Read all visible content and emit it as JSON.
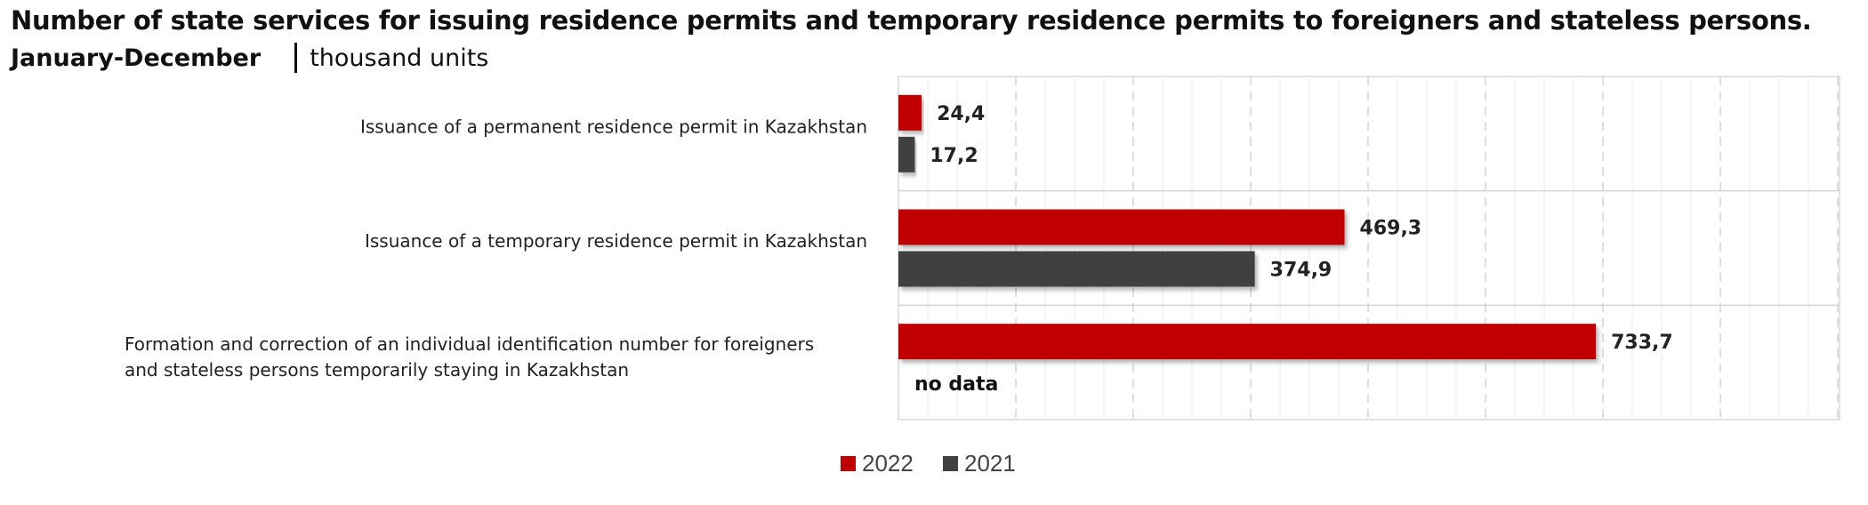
{
  "chart_data": {
    "type": "bar",
    "orientation": "horizontal",
    "title": "Number of state services for issuing residence permits and temporary residence permits to foreigners and stateless persons.",
    "period": "January-December",
    "units": "thousand units",
    "categories": [
      "Issuance of a permanent residence permit in Kazakhstan",
      "Issuance of a temporary residence permit in Kazakhstan",
      "Formation and correction of an individual identification number for foreigners and stateless persons temporarily staying in Kazakhstan"
    ],
    "category_lines": [
      [
        "Issuance of a permanent residence permit in Kazakhstan"
      ],
      [
        "Issuance of a temporary residence permit in Kazakhstan"
      ],
      [
        "Formation and correction of an individual identification number for foreigners",
        "and stateless persons temporarily staying in Kazakhstan"
      ]
    ],
    "series": [
      {
        "name": "2022",
        "color": "#C00000",
        "values": [
          24.4,
          469.3,
          733.7
        ],
        "labels": [
          "24,4",
          "469,3",
          "733,7"
        ]
      },
      {
        "name": "2021",
        "color": "#404040",
        "values": [
          17.2,
          374.9,
          null
        ],
        "labels": [
          "17,2",
          "374,9",
          "no data"
        ]
      }
    ],
    "xlim": [
      0,
      800
    ],
    "grid": true,
    "legend_position": "bottom"
  }
}
